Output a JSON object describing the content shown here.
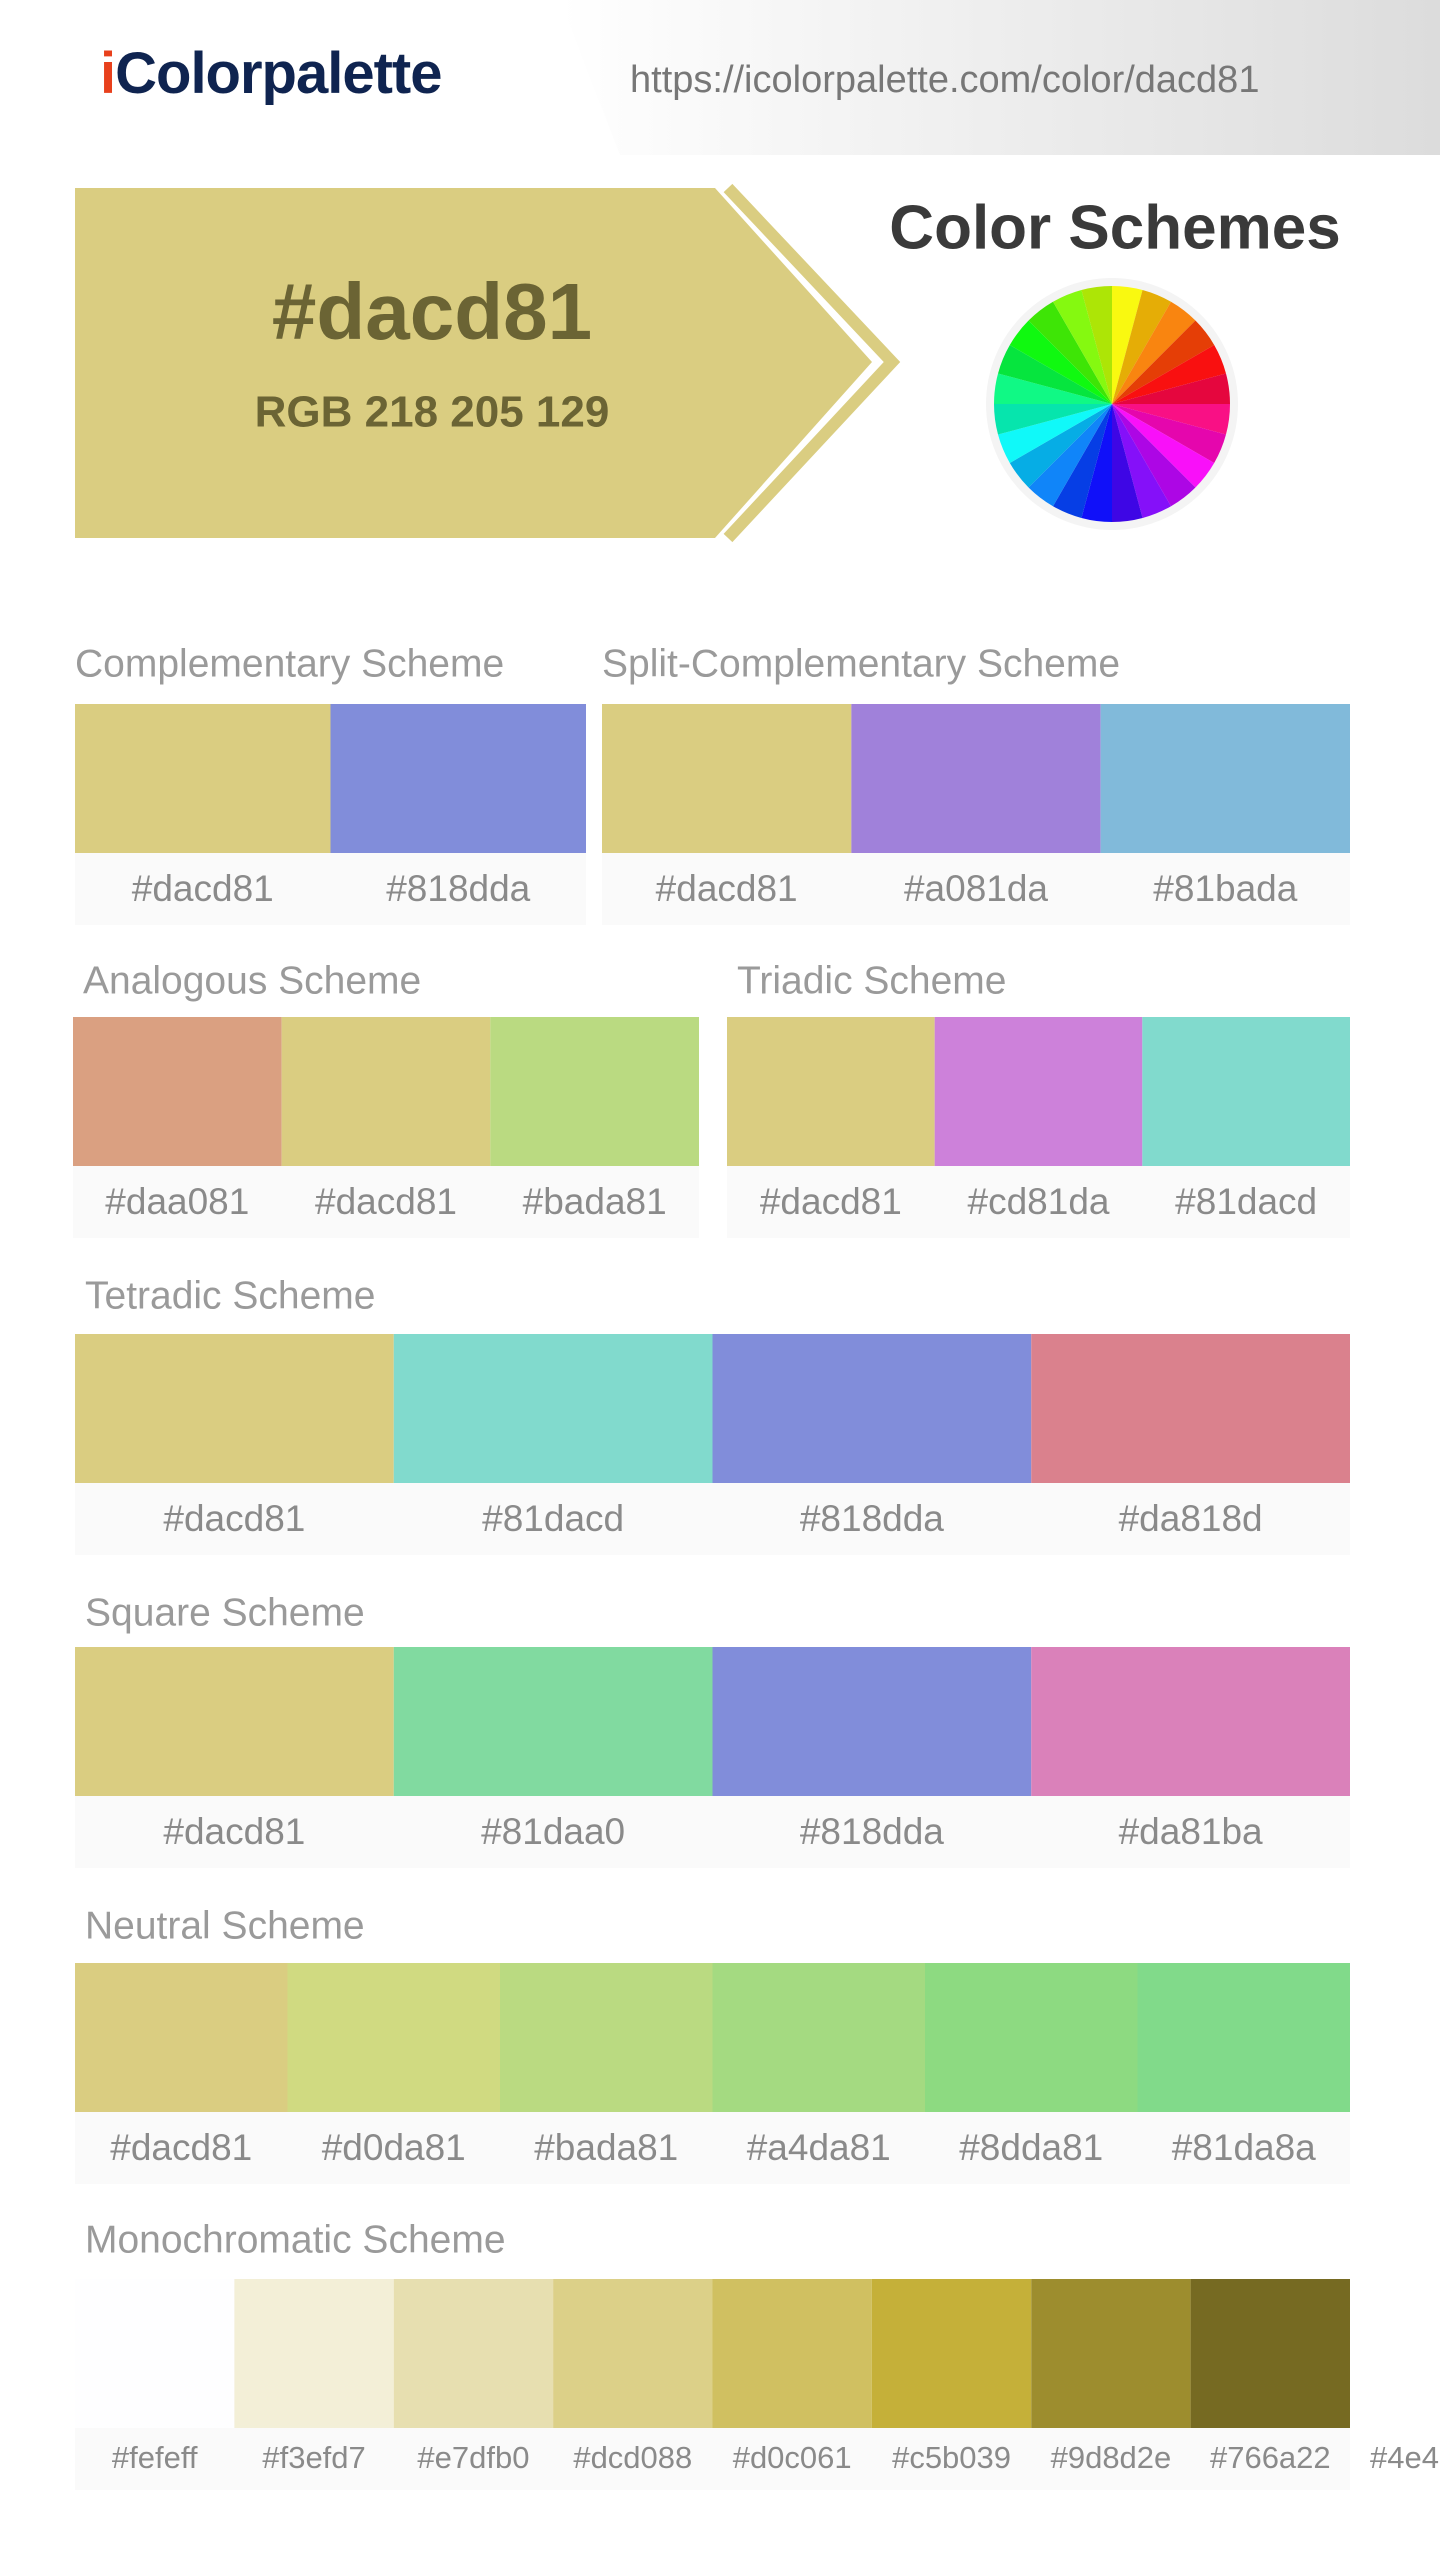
{
  "header": {
    "logo": "iColorpalette",
    "url": "https://icolorpalette.com/color/dacd81"
  },
  "hero": {
    "hex": "#dacd81",
    "rgb": "RGB 218 205 129",
    "title": "Color Schemes"
  },
  "schemes": [
    {
      "name": "Complementary Scheme",
      "swatches": [
        "#dacd81",
        "#818dda"
      ]
    },
    {
      "name": "Split-Complementary Scheme",
      "swatches": [
        "#dacd81",
        "#a081da",
        "#81bada"
      ]
    },
    {
      "name": "Analogous Scheme",
      "swatches": [
        "#daa081",
        "#dacd81",
        "#bada81"
      ]
    },
    {
      "name": "Triadic Scheme",
      "swatches": [
        "#dacd81",
        "#cd81da",
        "#81dacd"
      ]
    },
    {
      "name": "Tetradic Scheme",
      "swatches": [
        "#dacd81",
        "#81dacd",
        "#818dda",
        "#da818d"
      ]
    },
    {
      "name": "Square Scheme",
      "swatches": [
        "#dacd81",
        "#81daa0",
        "#818dda",
        "#da81ba"
      ]
    },
    {
      "name": "Neutral Scheme",
      "swatches": [
        "#dacd81",
        "#d0da81",
        "#bada81",
        "#a4da81",
        "#8dda81",
        "#81da8a"
      ]
    },
    {
      "name": "Monochromatic Scheme",
      "swatches": [
        "#fefeff",
        "#f3efd7",
        "#e7dfb0",
        "#dcd088",
        "#d0c061",
        "#c5b039",
        "#9d8d2e",
        "#766a22"
      ],
      "overflow_label": "#4e4"
    }
  ]
}
